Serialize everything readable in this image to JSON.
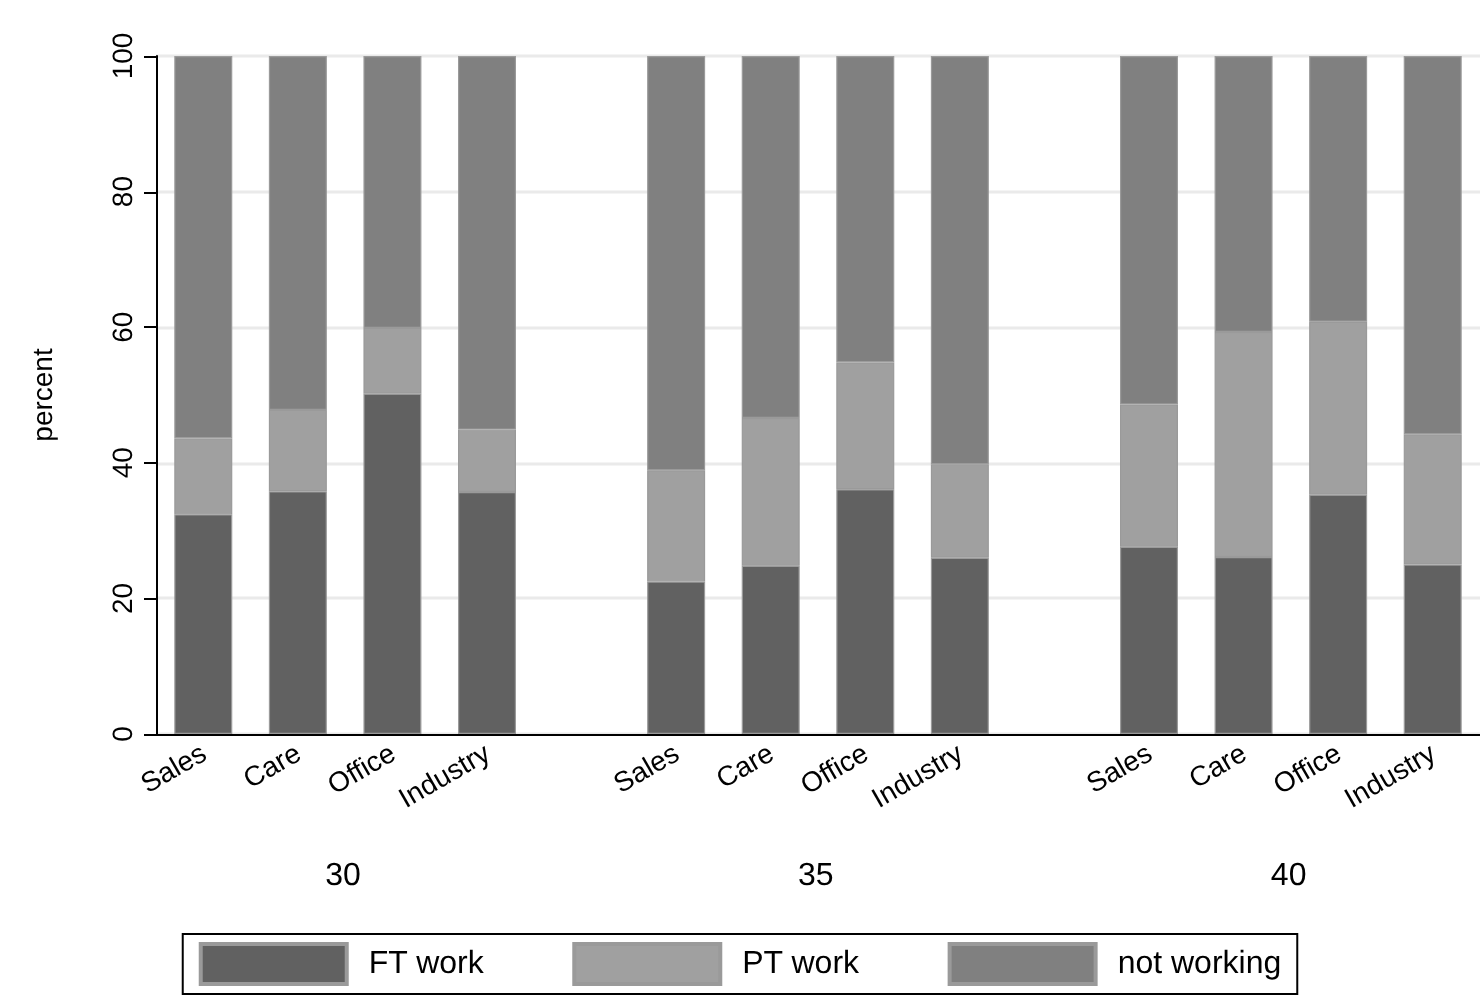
{
  "chart_data": {
    "type": "bar",
    "stacked": true,
    "ylabel": "percent",
    "categories": [
      "Sales",
      "Care",
      "Office",
      "Industry",
      "Sales",
      "Care",
      "Office",
      "Industry",
      "Sales",
      "Care",
      "Office",
      "Industry"
    ],
    "annotations": [
      "30",
      "35",
      "40"
    ],
    "series": [
      {
        "name": "FT work",
        "color": "#616161",
        "values": [
          32.4,
          35.8,
          50.2,
          35.7,
          22.5,
          24.8,
          36.1,
          26.0,
          27.6,
          26.1,
          35.3,
          25.0
        ]
      },
      {
        "name": "PT work",
        "color": "#a0a0a0",
        "values": [
          11.2,
          12.0,
          9.7,
          9.2,
          16.4,
          21.8,
          18.7,
          13.8,
          21.0,
          33.2,
          25.5,
          19.2
        ]
      },
      {
        "name": "not working",
        "color": "#808080",
        "values": [
          56.4,
          52.2,
          40.1,
          55.1,
          61.1,
          53.4,
          45.2,
          60.2,
          51.4,
          40.7,
          39.2,
          55.8
        ]
      }
    ],
    "ylim": [
      0,
      100
    ],
    "yticks": [
      0,
      20,
      40,
      60,
      80,
      100
    ],
    "grid": "y",
    "legend": "bottom"
  }
}
